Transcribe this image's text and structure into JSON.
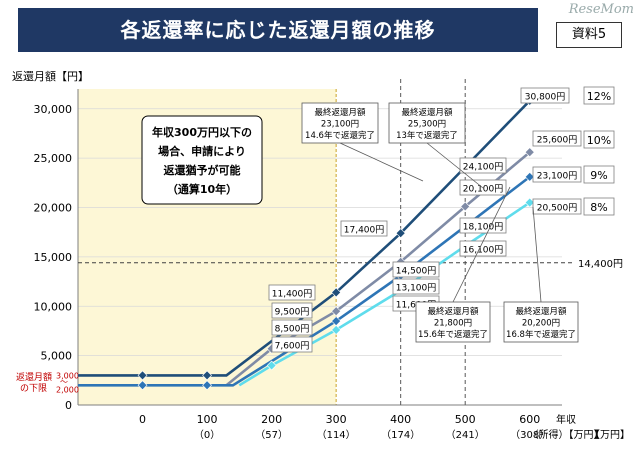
{
  "header": {
    "title": "各返還率に応じた返還月額の推移",
    "tag": "資料5",
    "watermark": "ReseMom"
  },
  "chart_data": {
    "type": "line",
    "ylabel": "返還月額【円】",
    "xlabel": "年収\n（所得）【万円】",
    "ylim": [
      0,
      32000
    ],
    "xlim": [
      -100,
      650
    ],
    "y_ticks": [
      0,
      5000,
      10000,
      15000,
      20000,
      25000,
      30000
    ],
    "y_tick_labels": [
      "0",
      "5,000",
      "10,000",
      "15,000",
      "20,000",
      "25,000",
      "30,000"
    ],
    "x_ticks": [
      0,
      100,
      200,
      300,
      400,
      500,
      600
    ],
    "x_tick_labels": [
      "0",
      "100",
      "200",
      "300",
      "400",
      "500",
      "600"
    ],
    "x_sub_labels": [
      "",
      "（0）",
      "（57）",
      "（114）",
      "（174）",
      "（241）",
      "（308）"
    ],
    "x_unit_label": "【万円】",
    "min_label": "返還月額\nの下限",
    "min_values": [
      "3,000",
      "〜",
      "2,000"
    ],
    "ref_line": {
      "y": 14400,
      "label": "14,400円"
    },
    "vlines": [
      400,
      500
    ],
    "grace_zone": {
      "x_end": 300,
      "text": [
        "年収300万円以下の",
        "場合、申請により",
        "返還猶予が可能",
        "（通算10年）"
      ]
    },
    "series": [
      {
        "name": "12%",
        "color": "#1f4e79",
        "points": [
          [
            -100,
            3000
          ],
          [
            100,
            3000
          ],
          [
            130,
            3000
          ],
          [
            300,
            11400
          ],
          [
            400,
            17400
          ],
          [
            500,
            24100
          ],
          [
            600,
            30800
          ]
        ],
        "markers": [
          [
            0,
            3000
          ],
          [
            100,
            3000
          ],
          [
            300,
            11400
          ],
          [
            400,
            17400
          ],
          [
            500,
            24100
          ],
          [
            600,
            30800
          ]
        ],
        "labels": [
          {
            "x": 300,
            "text": "11,400円"
          },
          {
            "x": 400,
            "text": "17,400円"
          },
          {
            "x": 500,
            "text": "24,100円"
          },
          {
            "x": 600,
            "text": "30,800円"
          }
        ]
      },
      {
        "name": "10%",
        "color": "#7f8ba6",
        "points": [
          [
            130,
            2000
          ],
          [
            200,
            5700
          ],
          [
            300,
            9500
          ],
          [
            400,
            14500
          ],
          [
            500,
            20100
          ],
          [
            600,
            25600
          ]
        ],
        "markers": [
          [
            200,
            5700
          ],
          [
            300,
            9500
          ],
          [
            400,
            14500
          ],
          [
            500,
            20100
          ],
          [
            600,
            25600
          ]
        ],
        "labels": [
          {
            "x": 300,
            "text": "9,500円"
          },
          {
            "x": 400,
            "text": "14,500円"
          },
          {
            "x": 500,
            "text": "20,100円"
          },
          {
            "x": 600,
            "text": "25,600円"
          }
        ]
      },
      {
        "name": "9%",
        "color": "#2e75b6",
        "points": [
          [
            -100,
            2000
          ],
          [
            100,
            2000
          ],
          [
            140,
            2000
          ],
          [
            300,
            8500
          ],
          [
            400,
            13100
          ],
          [
            500,
            18100
          ],
          [
            600,
            23100
          ]
        ],
        "markers": [
          [
            0,
            2000
          ],
          [
            100,
            2000
          ],
          [
            300,
            8500
          ],
          [
            400,
            13100
          ],
          [
            500,
            18100
          ],
          [
            600,
            23100
          ]
        ],
        "labels": [
          {
            "x": 300,
            "text": "8,500円"
          },
          {
            "x": 400,
            "text": "13,100円"
          },
          {
            "x": 500,
            "text": "18,100円"
          },
          {
            "x": 600,
            "text": "23,100円"
          }
        ]
      },
      {
        "name": "8%",
        "color": "#5fdcec",
        "points": [
          [
            150,
            2000
          ],
          [
            200,
            4000
          ],
          [
            300,
            7600
          ],
          [
            400,
            11600
          ],
          [
            500,
            16100
          ],
          [
            600,
            20500
          ]
        ],
        "markers": [
          [
            200,
            4000
          ],
          [
            300,
            7600
          ],
          [
            400,
            11600
          ],
          [
            500,
            16100
          ],
          [
            600,
            20500
          ]
        ],
        "labels": [
          {
            "x": 300,
            "text": "7,600円"
          },
          {
            "x": 400,
            "text": "11,600円"
          },
          {
            "x": 500,
            "text": "16,100円"
          },
          {
            "x": 600,
            "text": "20,500円"
          }
        ]
      }
    ],
    "callouts": [
      {
        "lines": [
          "最終返還月額",
          "23,100円",
          "14.6年で返還完了"
        ]
      },
      {
        "lines": [
          "最終返還月額",
          "25,300円",
          "13年で返還完了"
        ]
      },
      {
        "lines": [
          "最終返還月額",
          "21,800円",
          "15.6年で返還完了"
        ]
      },
      {
        "lines": [
          "最終返還月額",
          "20,200円",
          "16.8年で返還完了"
        ]
      }
    ]
  }
}
